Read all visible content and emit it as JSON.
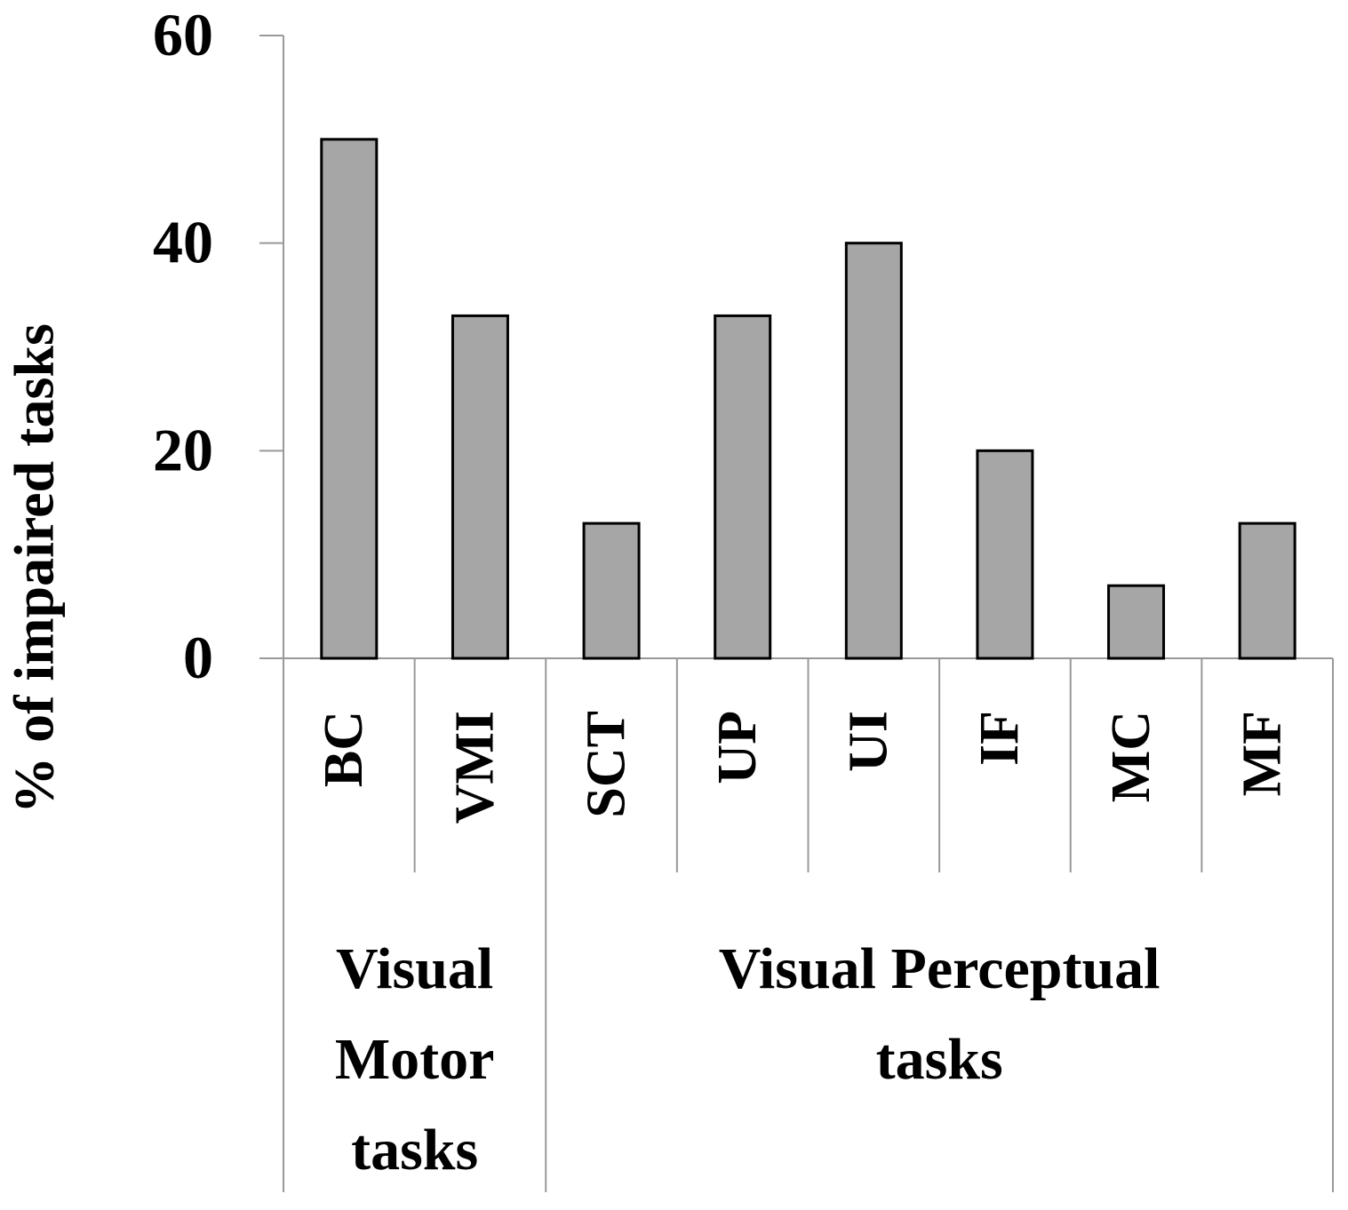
{
  "chart_data": {
    "type": "bar",
    "y_label": "% of impaired tasks",
    "groups": [
      {
        "label_lines": [
          "Visual",
          "Motor",
          "tasks"
        ],
        "categories": [
          "BC",
          "VMI"
        ],
        "values": [
          50,
          33
        ]
      },
      {
        "label_lines": [
          "Visual Perceptual",
          "tasks"
        ],
        "categories": [
          "SCT",
          "UP",
          "UI",
          "IF",
          "MC",
          "MF"
        ],
        "values": [
          13,
          33,
          40,
          20,
          7,
          13
        ]
      }
    ],
    "color": "#a6a6a6",
    "ylim": [
      0,
      60
    ],
    "yticks": [
      0,
      20,
      40,
      60
    ],
    "grid": false
  }
}
